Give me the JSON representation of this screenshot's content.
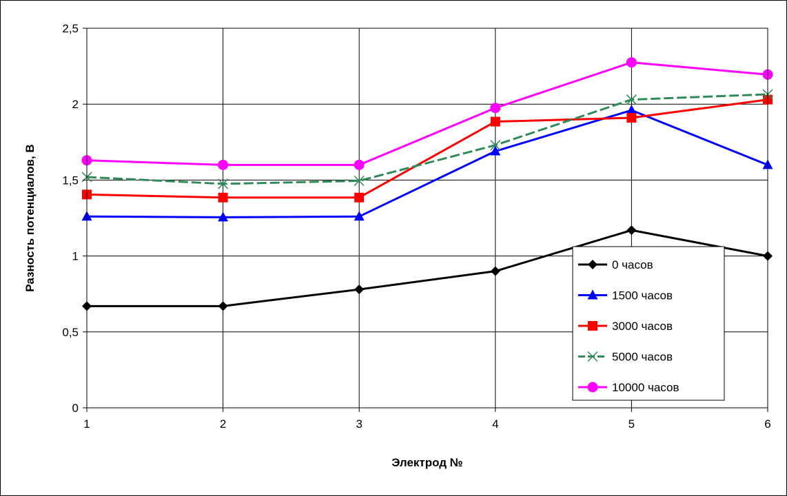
{
  "chart_data": {
    "type": "line",
    "title": "",
    "xlabel": "Электрод №",
    "ylabel": "Разность потенциалов, В",
    "x": [
      1,
      2,
      3,
      4,
      5,
      6
    ],
    "x_tick_labels": [
      "1",
      "2",
      "3",
      "4",
      "5",
      "6"
    ],
    "ylim": [
      0,
      2.5
    ],
    "y_ticks": [
      0,
      0.5,
      1,
      1.5,
      2,
      2.5
    ],
    "y_tick_labels": [
      "0",
      "0,5",
      "1",
      "1,5",
      "2",
      "2,5"
    ],
    "grid": true,
    "legend_position": "bottom-right",
    "series": [
      {
        "name": "0 часов",
        "color": "#000000",
        "marker": "diamond",
        "values": [
          0.67,
          0.67,
          0.78,
          0.9,
          1.17,
          1.0
        ]
      },
      {
        "name": "1500 часов",
        "color": "#0000FF",
        "marker": "triangle",
        "values": [
          1.26,
          1.255,
          1.26,
          1.69,
          1.96,
          1.6
        ]
      },
      {
        "name": "3000 часов",
        "color": "#FF0000",
        "marker": "square",
        "values": [
          1.405,
          1.385,
          1.385,
          1.885,
          1.91,
          2.03
        ]
      },
      {
        "name": "5000 часов",
        "color": "#2E8B57",
        "marker": "x",
        "dashed": true,
        "values": [
          1.52,
          1.475,
          1.495,
          1.73,
          2.03,
          2.065
        ]
      },
      {
        "name": "10000 часов",
        "color": "#FF00FF",
        "marker": "circle",
        "values": [
          1.63,
          1.6,
          1.6,
          1.975,
          2.275,
          2.195
        ]
      }
    ]
  }
}
